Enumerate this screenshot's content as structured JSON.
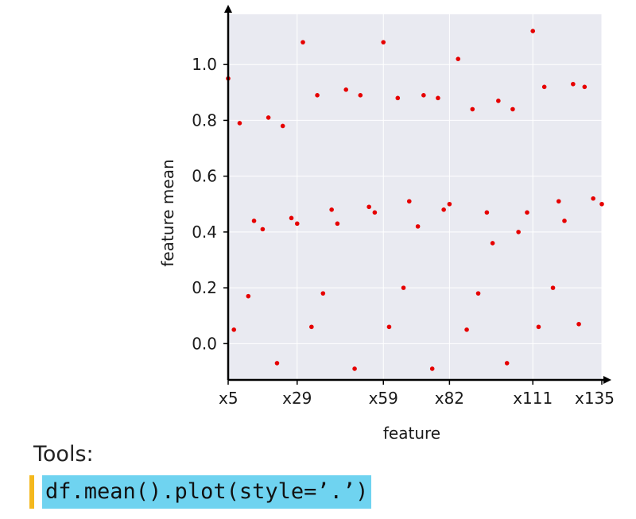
{
  "chart_data": {
    "type": "scatter",
    "xlabel": "feature",
    "ylabel": "feature mean",
    "x_tick_labels": [
      "x5",
      "x29",
      "x59",
      "x82",
      "x111",
      "x135"
    ],
    "y_ticks": [
      0.0,
      0.2,
      0.4,
      0.6,
      0.8,
      1.0
    ],
    "y_tick_labels": [
      "0.0",
      "0.2",
      "0.4",
      "0.6",
      "0.8",
      "1.0"
    ],
    "ylim": [
      -0.13,
      1.18
    ],
    "grid": true,
    "point_color": "#e60000",
    "background_color": "#e9eaf1",
    "x_tick_positions": [
      5,
      29,
      59,
      82,
      111,
      135
    ],
    "xlim": [
      5,
      135
    ],
    "points": [
      {
        "x": 5,
        "y": 0.95
      },
      {
        "x": 7,
        "y": 0.05
      },
      {
        "x": 9,
        "y": 0.79
      },
      {
        "x": 12,
        "y": 0.17
      },
      {
        "x": 14,
        "y": 0.44
      },
      {
        "x": 17,
        "y": 0.41
      },
      {
        "x": 19,
        "y": 0.81
      },
      {
        "x": 22,
        "y": -0.07
      },
      {
        "x": 24,
        "y": 0.78
      },
      {
        "x": 27,
        "y": 0.45
      },
      {
        "x": 29,
        "y": 0.43
      },
      {
        "x": 31,
        "y": 1.08
      },
      {
        "x": 34,
        "y": 0.06
      },
      {
        "x": 36,
        "y": 0.89
      },
      {
        "x": 38,
        "y": 0.18
      },
      {
        "x": 41,
        "y": 0.48
      },
      {
        "x": 43,
        "y": 0.43
      },
      {
        "x": 46,
        "y": 0.91
      },
      {
        "x": 49,
        "y": -0.09
      },
      {
        "x": 51,
        "y": 0.89
      },
      {
        "x": 54,
        "y": 0.49
      },
      {
        "x": 56,
        "y": 0.47
      },
      {
        "x": 59,
        "y": 1.08
      },
      {
        "x": 61,
        "y": 0.06
      },
      {
        "x": 64,
        "y": 0.88
      },
      {
        "x": 66,
        "y": 0.2
      },
      {
        "x": 68,
        "y": 0.51
      },
      {
        "x": 71,
        "y": 0.42
      },
      {
        "x": 73,
        "y": 0.89
      },
      {
        "x": 76,
        "y": -0.09
      },
      {
        "x": 78,
        "y": 0.88
      },
      {
        "x": 80,
        "y": 0.48
      },
      {
        "x": 82,
        "y": 0.5
      },
      {
        "x": 85,
        "y": 1.02
      },
      {
        "x": 88,
        "y": 0.05
      },
      {
        "x": 90,
        "y": 0.84
      },
      {
        "x": 92,
        "y": 0.18
      },
      {
        "x": 95,
        "y": 0.47
      },
      {
        "x": 97,
        "y": 0.36
      },
      {
        "x": 99,
        "y": 0.87
      },
      {
        "x": 102,
        "y": -0.07
      },
      {
        "x": 104,
        "y": 0.84
      },
      {
        "x": 106,
        "y": 0.4
      },
      {
        "x": 109,
        "y": 0.47
      },
      {
        "x": 111,
        "y": 1.12
      },
      {
        "x": 113,
        "y": 0.06
      },
      {
        "x": 115,
        "y": 0.92
      },
      {
        "x": 118,
        "y": 0.2
      },
      {
        "x": 120,
        "y": 0.51
      },
      {
        "x": 122,
        "y": 0.44
      },
      {
        "x": 125,
        "y": 0.93
      },
      {
        "x": 127,
        "y": 0.07
      },
      {
        "x": 129,
        "y": 0.92
      },
      {
        "x": 132,
        "y": 0.52
      },
      {
        "x": 135,
        "y": 0.5
      }
    ]
  },
  "tools": {
    "label": "Tools:",
    "code": "df.mean().plot(style=’.’)"
  }
}
